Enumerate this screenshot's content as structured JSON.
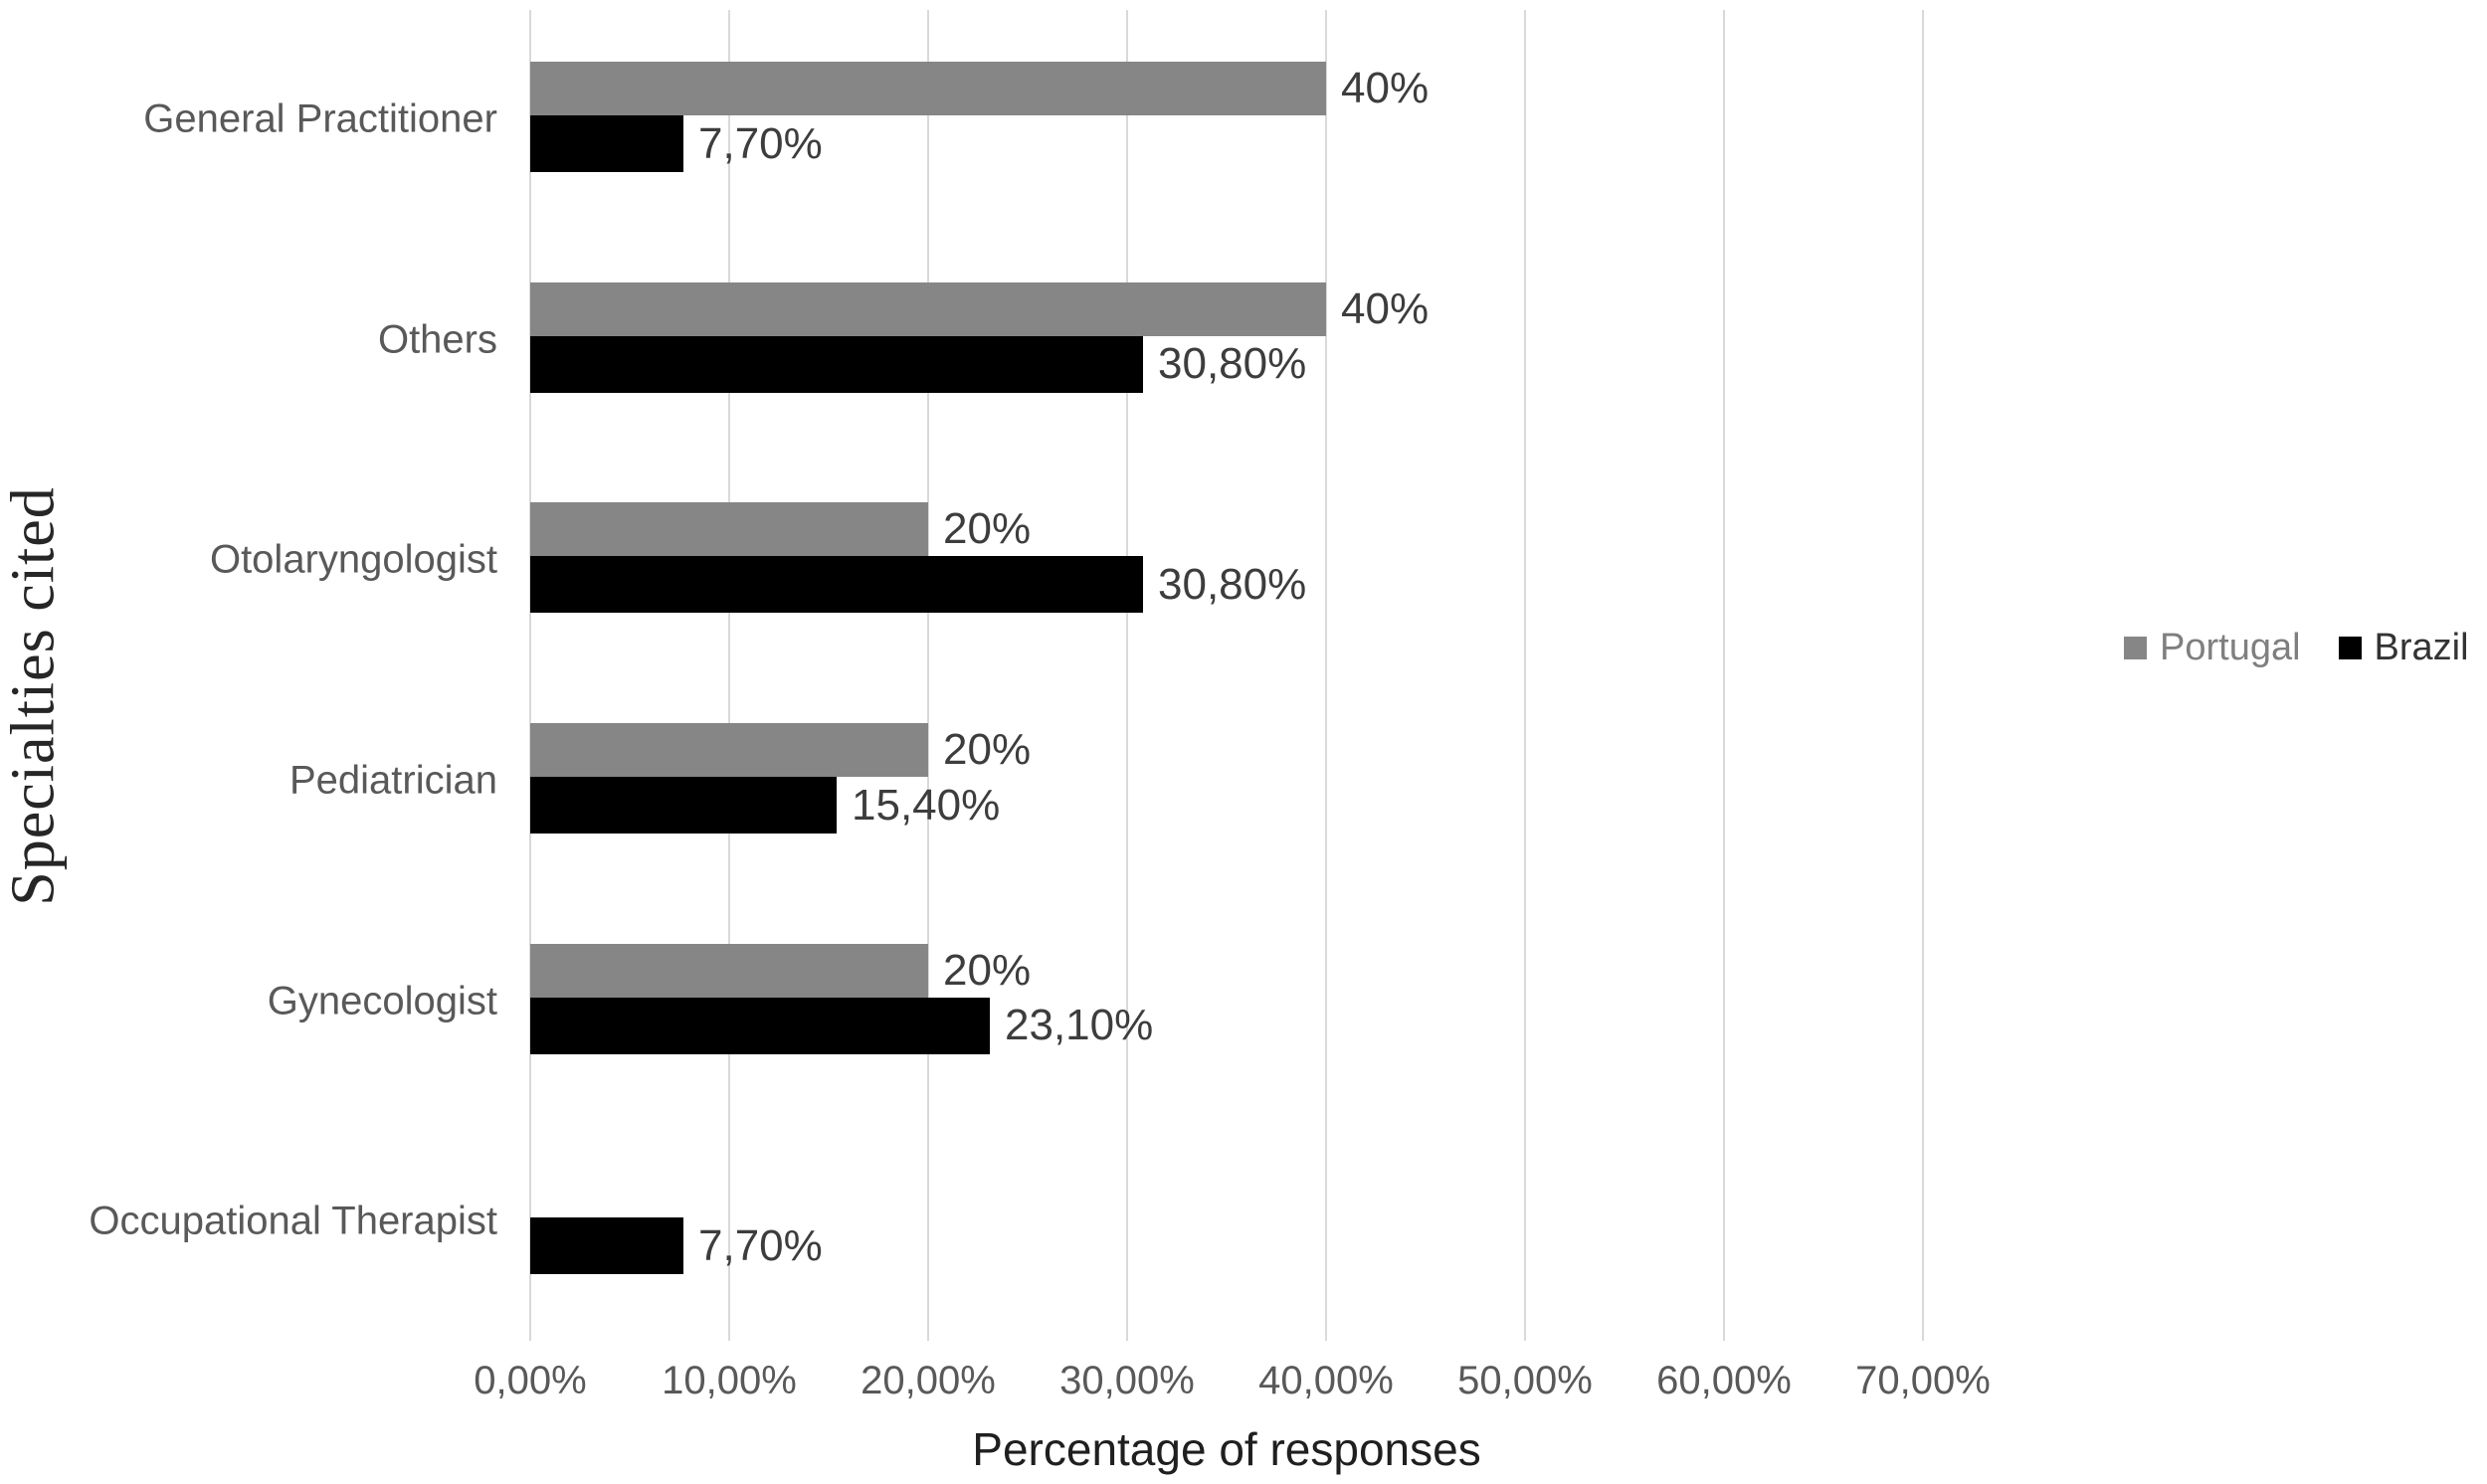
{
  "chart_data": {
    "type": "bar",
    "orientation": "horizontal",
    "title": "",
    "xlabel": "Percentage of responses",
    "ylabel": "Specialties cited",
    "categories": [
      "General Practitioner",
      "Others",
      "Otolaryngologist",
      "Pediatrician",
      "Gynecologist",
      "Occupational Therapist"
    ],
    "series": [
      {
        "name": "Portugal",
        "color": "#868686",
        "values": [
          40,
          40,
          20,
          20,
          20,
          null
        ],
        "data_labels": [
          "40%",
          "40%",
          "20%",
          "20%",
          "20%",
          null
        ]
      },
      {
        "name": "Brazil",
        "color": "#000000",
        "values": [
          7.7,
          30.8,
          30.8,
          15.4,
          23.1,
          7.7
        ],
        "data_labels": [
          "7,70%",
          "30,80%",
          "30,80%",
          "15,40%",
          "23,10%",
          "7,70%"
        ]
      }
    ],
    "xlim": [
      0,
      70
    ],
    "x_tick_values": [
      0,
      10,
      20,
      30,
      40,
      50,
      60,
      70
    ],
    "x_tick_labels": [
      "0,00%",
      "10,00%",
      "20,00%",
      "30,00%",
      "40,00%",
      "50,00%",
      "60,00%",
      "70,00%"
    ],
    "grid": true,
    "legend_position": "right",
    "legend": [
      {
        "label": "Portugal",
        "swatch_color": "#868686",
        "text_color": "#7f7f7f"
      },
      {
        "label": "Brazil",
        "swatch_color": "#000000",
        "text_color": "#333333"
      }
    ]
  },
  "colors": {
    "background": "#ffffff",
    "gridline": "#d9d9d9",
    "category_label": "#595959",
    "tick_label": "#595959",
    "data_label": "#3d3d3d",
    "x_axis_title": "#1f1f1f",
    "y_axis_title": "#262626"
  }
}
